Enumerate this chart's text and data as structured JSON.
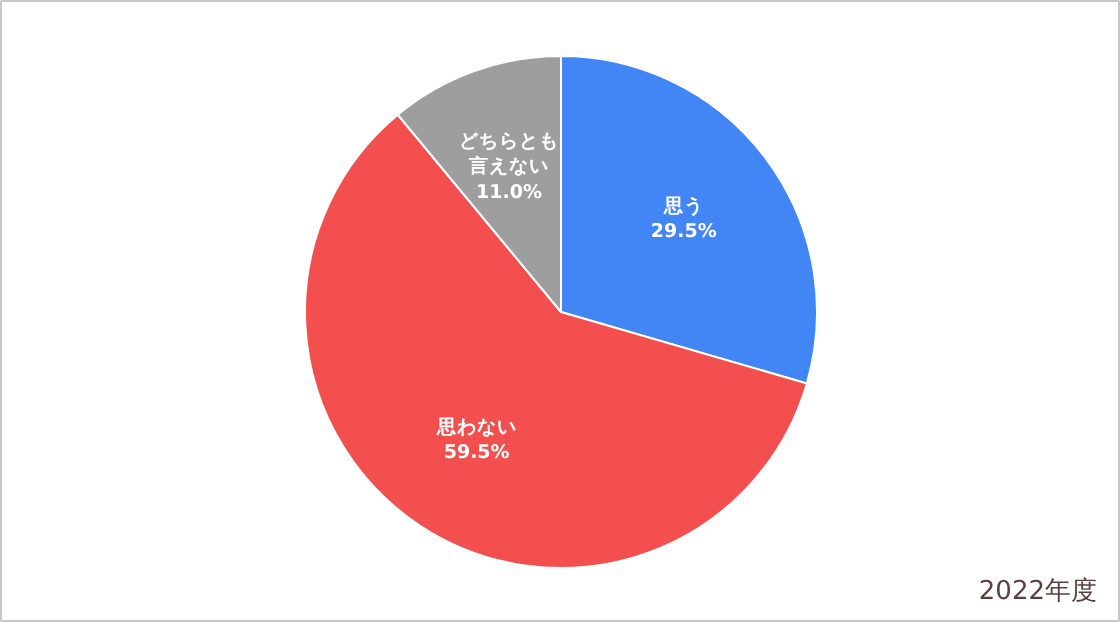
{
  "chart_data": {
    "type": "pie",
    "categories": [
      "思う",
      "思わない",
      "どちらとも言えない"
    ],
    "values": [
      29.5,
      59.5,
      11.0
    ],
    "colors": [
      "#4285f4",
      "#f44f4f",
      "#9e9e9e"
    ],
    "value_labels": [
      "29.5%",
      "59.5%",
      "11.0%"
    ],
    "annotations": [
      "2022年度"
    ]
  }
}
